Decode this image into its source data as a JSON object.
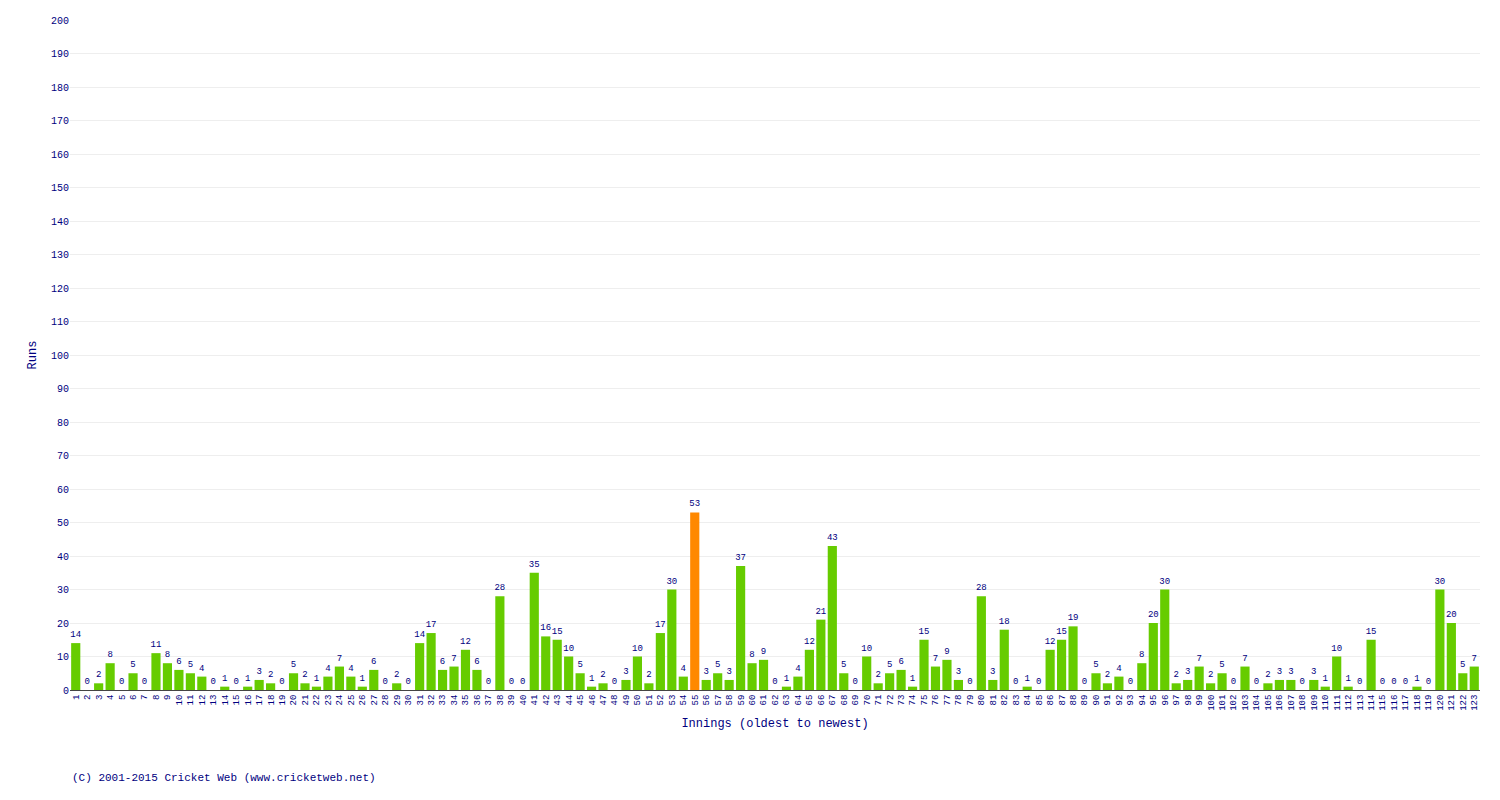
{
  "chart_data": {
    "type": "bar",
    "xlabel": "Innings (oldest to newest)",
    "ylabel": "Runs",
    "annotations": [
      "(C) 2001-2015 Cricket Web (www.cricketweb.net)"
    ],
    "categories": [
      "1",
      "2",
      "3",
      "4",
      "5",
      "6",
      "7",
      "8",
      "9",
      "10",
      "11",
      "12",
      "13",
      "14",
      "15",
      "16",
      "17",
      "18",
      "19",
      "20",
      "21",
      "22",
      "23",
      "24",
      "25",
      "26",
      "27",
      "28",
      "29",
      "30",
      "31",
      "32",
      "33",
      "34",
      "35",
      "36",
      "37",
      "38",
      "39",
      "40",
      "41",
      "42",
      "43",
      "44",
      "45",
      "46",
      "47",
      "48",
      "49",
      "50",
      "51",
      "52",
      "53",
      "54",
      "55",
      "56",
      "57",
      "58",
      "59",
      "60",
      "61",
      "62",
      "63",
      "64",
      "65",
      "66",
      "67",
      "68",
      "69",
      "70",
      "71",
      "72",
      "73",
      "74",
      "75",
      "76",
      "77",
      "78",
      "79",
      "80",
      "81",
      "82",
      "83",
      "84",
      "85",
      "86",
      "87",
      "88",
      "89",
      "90",
      "91",
      "92",
      "93",
      "94",
      "95",
      "96",
      "97",
      "98",
      "99",
      "100",
      "101",
      "102",
      "103",
      "104",
      "105",
      "106",
      "107",
      "108",
      "109",
      "110",
      "111",
      "112",
      "113",
      "114",
      "115",
      "116",
      "117",
      "118",
      "119",
      "120",
      "121",
      "122",
      "123"
    ],
    "values": [
      14,
      0,
      2,
      8,
      0,
      5,
      0,
      11,
      8,
      6,
      5,
      4,
      0,
      1,
      0,
      1,
      3,
      2,
      0,
      5,
      2,
      1,
      4,
      7,
      4,
      1,
      6,
      0,
      2,
      0,
      14,
      17,
      6,
      7,
      12,
      6,
      0,
      28,
      0,
      0,
      35,
      16,
      15,
      10,
      5,
      1,
      2,
      0,
      3,
      10,
      2,
      17,
      30,
      4,
      53,
      3,
      5,
      3,
      37,
      8,
      9,
      0,
      1,
      4,
      12,
      21,
      43,
      5,
      0,
      10,
      2,
      5,
      6,
      1,
      15,
      7,
      9,
      3,
      0,
      28,
      3,
      18,
      0,
      1,
      0,
      12,
      15,
      19,
      0,
      5,
      2,
      4,
      0,
      8,
      20,
      30,
      2,
      3,
      7,
      2,
      5,
      0,
      7,
      0,
      2,
      3,
      3,
      0,
      3,
      1,
      10,
      1,
      0,
      15,
      0,
      0,
      0,
      1,
      0,
      30,
      20,
      5,
      7
    ],
    "colors": [
      "#66cc00",
      "#66cc00",
      "#66cc00",
      "#66cc00",
      "#66cc00",
      "#66cc00",
      "#66cc00",
      "#66cc00",
      "#66cc00",
      "#66cc00",
      "#66cc00",
      "#66cc00",
      "#66cc00",
      "#66cc00",
      "#66cc00",
      "#66cc00",
      "#66cc00",
      "#66cc00",
      "#66cc00",
      "#66cc00",
      "#66cc00",
      "#66cc00",
      "#66cc00",
      "#66cc00",
      "#66cc00",
      "#66cc00",
      "#66cc00",
      "#66cc00",
      "#66cc00",
      "#66cc00",
      "#66cc00",
      "#66cc00",
      "#66cc00",
      "#66cc00",
      "#66cc00",
      "#66cc00",
      "#66cc00",
      "#66cc00",
      "#66cc00",
      "#66cc00",
      "#66cc00",
      "#66cc00",
      "#66cc00",
      "#66cc00",
      "#66cc00",
      "#66cc00",
      "#66cc00",
      "#66cc00",
      "#66cc00",
      "#66cc00",
      "#66cc00",
      "#66cc00",
      "#66cc00",
      "#66cc00",
      "#ff8800",
      "#66cc00",
      "#66cc00",
      "#66cc00",
      "#66cc00",
      "#66cc00",
      "#66cc00",
      "#66cc00",
      "#66cc00",
      "#66cc00",
      "#66cc00",
      "#66cc00",
      "#66cc00",
      "#66cc00",
      "#66cc00",
      "#66cc00",
      "#66cc00",
      "#66cc00",
      "#66cc00",
      "#66cc00",
      "#66cc00",
      "#66cc00",
      "#66cc00",
      "#66cc00",
      "#66cc00",
      "#66cc00",
      "#66cc00",
      "#66cc00",
      "#66cc00",
      "#66cc00",
      "#66cc00",
      "#66cc00",
      "#66cc00",
      "#66cc00",
      "#66cc00",
      "#66cc00",
      "#66cc00",
      "#66cc00",
      "#66cc00",
      "#66cc00",
      "#66cc00",
      "#66cc00",
      "#66cc00",
      "#66cc00",
      "#66cc00",
      "#66cc00",
      "#66cc00",
      "#66cc00",
      "#66cc00",
      "#66cc00",
      "#66cc00",
      "#66cc00",
      "#66cc00",
      "#66cc00",
      "#66cc00",
      "#66cc00",
      "#66cc00",
      "#66cc00",
      "#66cc00",
      "#66cc00",
      "#66cc00",
      "#66cc00",
      "#66cc00",
      "#66cc00",
      "#66cc00",
      "#66cc00",
      "#66cc00",
      "#66cc00",
      "#66cc00"
    ],
    "ylim": [
      0,
      200
    ],
    "yticks": [
      0,
      10,
      20,
      30,
      40,
      50,
      60,
      70,
      80,
      90,
      100,
      110,
      120,
      130,
      140,
      150,
      160,
      170,
      180,
      190,
      200
    ],
    "grid": true,
    "data_labels": true
  }
}
